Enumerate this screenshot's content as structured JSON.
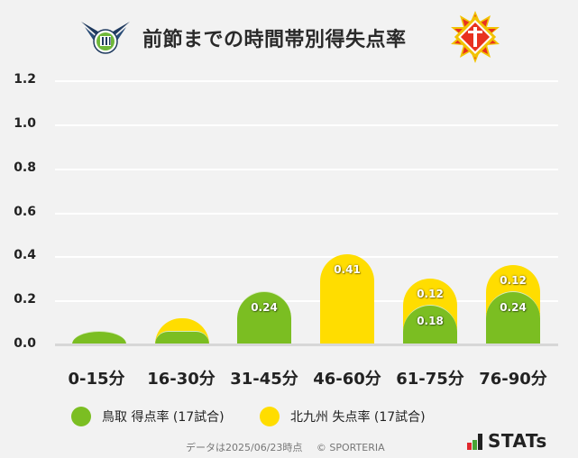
{
  "header": {
    "title": "前節までの時間帯別得失点率",
    "home_logo": "gainare-tottori-emblem",
    "away_logo": "giravanz-kitakyushu-emblem"
  },
  "y_axis": {
    "ticks": [
      "1.2",
      "1.0",
      "0.8",
      "0.6",
      "0.4",
      "0.2",
      "0.0"
    ]
  },
  "x_axis": {
    "ticks": [
      "0-15分",
      "16-30分",
      "31-45分",
      "46-60分",
      "61-75分",
      "76-90分"
    ]
  },
  "bars": [
    {
      "category": "0-15分",
      "green": 0.06,
      "yellow": 0.0,
      "green_label": "",
      "yellow_label": ""
    },
    {
      "category": "16-30分",
      "green": 0.06,
      "yellow": 0.06,
      "green_label": "",
      "yellow_label": ""
    },
    {
      "category": "31-45分",
      "green": 0.24,
      "yellow": 0.0,
      "green_label": "0.24",
      "yellow_label": ""
    },
    {
      "category": "46-60分",
      "green": 0.0,
      "yellow": 0.41,
      "green_label": "",
      "yellow_label": "0.41"
    },
    {
      "category": "61-75分",
      "green": 0.18,
      "yellow": 0.12,
      "green_label": "0.18",
      "yellow_label": "0.12"
    },
    {
      "category": "76-90分",
      "green": 0.24,
      "yellow": 0.12,
      "green_label": "0.24",
      "yellow_label": "0.12"
    }
  ],
  "legend": {
    "items": [
      {
        "label": "鳥取 得点率 (17試合)",
        "color": "#7bbe22"
      },
      {
        "label": "北九州 失点率 (17試合)",
        "color": "#ffdd00"
      }
    ]
  },
  "footer": {
    "date_note": "データは2025/06/23時点",
    "copyright": "© SPORTERIA",
    "brand": "STATs"
  },
  "colors": {
    "green": "#7bbe22",
    "yellow": "#ffdd00",
    "background": "#f2f2f2",
    "gridline": "#ffffff"
  },
  "chart_data": {
    "type": "bar",
    "stacked": true,
    "title": "前節までの時間帯別得失点率",
    "categories": [
      "0-15分",
      "16-30分",
      "31-45分",
      "46-60分",
      "61-75分",
      "76-90分"
    ],
    "series": [
      {
        "name": "鳥取 得点率 (17試合)",
        "color": "#7bbe22",
        "values": [
          0.06,
          0.06,
          0.24,
          0.0,
          0.18,
          0.24
        ]
      },
      {
        "name": "北九州 失点率 (17試合)",
        "color": "#ffdd00",
        "values": [
          0.0,
          0.06,
          0.0,
          0.41,
          0.12,
          0.12
        ]
      }
    ],
    "data_labels": {
      "鳥取 得点率 (17試合)": [
        "",
        "",
        "0.24",
        "",
        "0.18",
        "0.24"
      ],
      "北九州 失点率 (17試合)": [
        "",
        "",
        "",
        "0.41",
        "0.12",
        "0.12"
      ]
    },
    "xlabel": "",
    "ylabel": "",
    "ylim": [
      0,
      1.2
    ],
    "yticks": [
      0.0,
      0.2,
      0.4,
      0.6,
      0.8,
      1.0,
      1.2
    ],
    "grid": true,
    "legend_position": "bottom"
  }
}
